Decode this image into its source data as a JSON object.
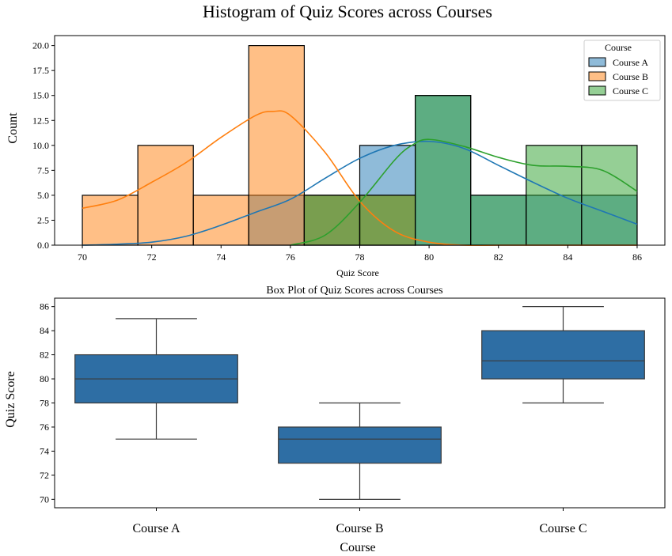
{
  "figure_title": "Histogram of Quiz Scores across Courses",
  "colors": {
    "course_a": "#1f77b4",
    "course_b": "#ff7f0e",
    "course_c": "#2ca02c",
    "box_fill": "#2e6ea4"
  },
  "chart_data": [
    {
      "type": "histogram",
      "title": "",
      "xlabel": "Quiz Score",
      "ylabel": "Count",
      "xlim": [
        69.2,
        86.8
      ],
      "ylim": [
        0,
        21
      ],
      "x_ticks": [
        70,
        72,
        74,
        76,
        78,
        80,
        82,
        84,
        86
      ],
      "y_ticks": [
        0.0,
        2.5,
        5.0,
        7.5,
        10.0,
        12.5,
        15.0,
        17.5,
        20.0
      ],
      "y_tick_labels": [
        "0.0",
        "2.5",
        "5.0",
        "7.5",
        "10.0",
        "12.5",
        "15.0",
        "17.5",
        "20.0"
      ],
      "bin_edges": [
        70,
        71.6,
        73.2,
        74.8,
        76.4,
        78,
        79.6,
        81.2,
        82.8,
        84.4,
        86
      ],
      "legend": {
        "title": "Course",
        "position": "top-right"
      },
      "kde": true,
      "series": [
        {
          "name": "Course A",
          "color_key": "course_a",
          "counts": [
            0,
            0,
            0,
            5,
            5,
            10,
            15,
            5,
            5,
            5
          ],
          "kde_x": [
            70,
            71,
            72,
            73,
            74,
            75,
            76,
            77,
            78,
            79,
            80,
            81,
            82,
            83,
            84,
            85,
            86
          ],
          "kde_y": [
            0.0,
            0.1,
            0.3,
            0.9,
            2.0,
            3.3,
            4.6,
            6.7,
            8.7,
            10.0,
            10.4,
            9.7,
            8.0,
            6.3,
            4.7,
            3.4,
            2.1
          ]
        },
        {
          "name": "Course B",
          "color_key": "course_b",
          "counts": [
            5,
            10,
            5,
            20,
            5,
            5,
            0,
            0,
            0,
            0
          ],
          "kde_x": [
            70,
            71,
            72,
            73,
            74,
            75,
            75.5,
            76,
            77,
            78,
            79,
            80,
            81,
            82,
            83,
            84,
            85,
            86
          ],
          "kde_y": [
            3.7,
            4.5,
            6.3,
            8.3,
            10.8,
            13.0,
            13.4,
            13.0,
            9.3,
            4.4,
            1.4,
            0.3,
            0.0,
            0.0,
            0.0,
            0.0,
            0.0,
            0.0
          ]
        },
        {
          "name": "Course C",
          "color_key": "course_c",
          "counts": [
            0,
            0,
            0,
            0,
            5,
            5,
            15,
            5,
            10,
            10
          ],
          "kde_x": [
            76,
            77,
            78,
            79,
            79.5,
            80,
            81,
            82,
            83,
            84,
            85,
            86
          ],
          "kde_y": [
            0.0,
            1.0,
            4.3,
            8.5,
            10.0,
            10.6,
            9.9,
            8.8,
            8.0,
            7.9,
            7.5,
            5.4
          ]
        }
      ]
    },
    {
      "type": "box",
      "title": "Box Plot of Quiz Scores across Courses",
      "xlabel": "Course",
      "ylabel": "Quiz Score",
      "ylim": [
        69.3,
        86.7
      ],
      "y_ticks": [
        70,
        72,
        74,
        76,
        78,
        80,
        82,
        84,
        86
      ],
      "categories": [
        "Course A",
        "Course B",
        "Course C"
      ],
      "boxes": [
        {
          "min": 75,
          "q1": 78,
          "median": 80,
          "q3": 82,
          "max": 85
        },
        {
          "min": 70,
          "q1": 73,
          "median": 75,
          "q3": 76,
          "max": 78
        },
        {
          "min": 78,
          "q1": 80,
          "median": 81.5,
          "q3": 84,
          "max": 86
        }
      ]
    }
  ]
}
